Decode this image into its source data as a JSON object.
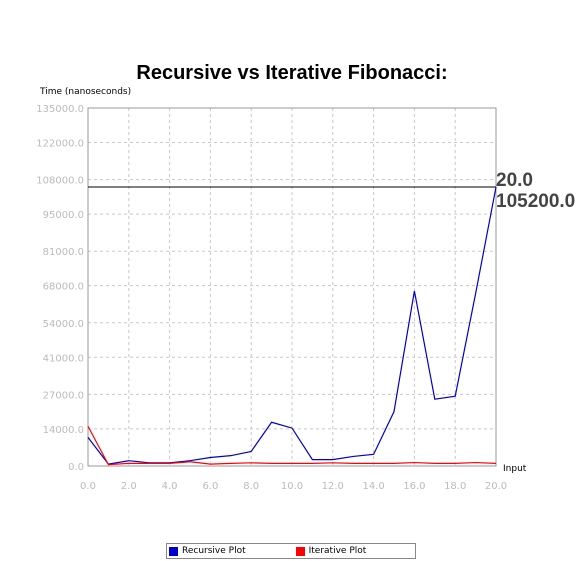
{
  "chart_data": {
    "type": "line",
    "title": "Recursive vs Iterative Fibonacci:",
    "xlabel": "Input",
    "ylabel": "Time (nanoseconds)",
    "xlim": [
      0,
      20
    ],
    "ylim": [
      0,
      135000
    ],
    "x_ticks": [
      "0.0",
      "2.0",
      "4.0",
      "6.0",
      "8.0",
      "10.0",
      "12.0",
      "14.0",
      "16.0",
      "18.0",
      "20.0"
    ],
    "y_ticks": [
      "0.0",
      "14000.0",
      "27000.0",
      "41000.0",
      "54000.0",
      "68000.0",
      "81000.0",
      "95000.0",
      "108000.0",
      "122000.0",
      "135000.0"
    ],
    "grid": true,
    "legend_position": "bottom",
    "x": [
      0,
      1,
      2,
      3,
      4,
      5,
      6,
      7,
      8,
      9,
      10,
      11,
      12,
      13,
      14,
      15,
      16,
      17,
      18,
      19,
      20
    ],
    "series": [
      {
        "name": "Recursive Plot",
        "color": "#0000cc",
        "values": [
          10800,
          700,
          2000,
          1200,
          1200,
          2000,
          3200,
          3900,
          5500,
          16500,
          14300,
          2400,
          2400,
          3600,
          4400,
          20500,
          66000,
          25200,
          26300,
          65000,
          105200
        ]
      },
      {
        "name": "Iterative Plot",
        "color": "#ff0000",
        "values": [
          15000,
          500,
          1000,
          1000,
          1000,
          1600,
          700,
          1000,
          1200,
          1000,
          1000,
          1000,
          1200,
          1000,
          1000,
          1000,
          1300,
          1000,
          1000,
          1300,
          1000
        ]
      }
    ],
    "crosshair": {
      "x": 20.0,
      "y": 105200.0,
      "x_label": "20.0",
      "y_label": "105200.0"
    }
  }
}
